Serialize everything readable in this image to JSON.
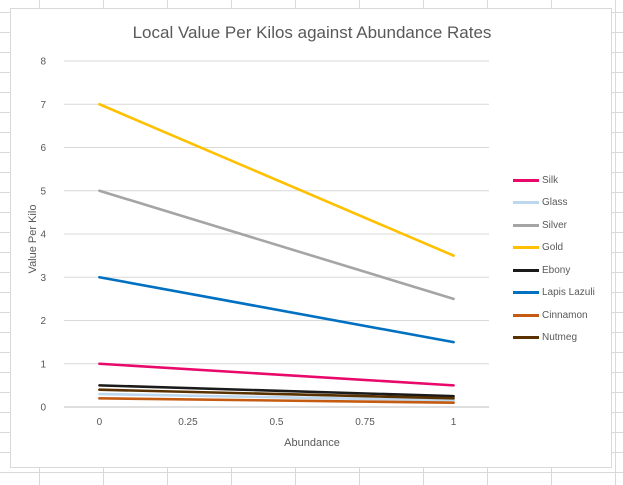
{
  "chart_data": {
    "type": "line",
    "title": "Local Value Per Kilos against Abundance Rates",
    "xlabel": "Abundance",
    "ylabel": "Value Per Kilo",
    "xlim": [
      -0.1,
      1.1
    ],
    "ylim": [
      0,
      8
    ],
    "x_ticks": [
      0,
      0.25,
      0.5,
      0.75,
      1
    ],
    "x_tick_labels": [
      "0",
      "0.25",
      "0.5",
      "0.75",
      "1"
    ],
    "y_ticks": [
      0,
      1,
      2,
      3,
      4,
      5,
      6,
      7,
      8
    ],
    "y_tick_labels": [
      "0",
      "1",
      "2",
      "3",
      "4",
      "5",
      "6",
      "7",
      "8"
    ],
    "grid": true,
    "legend_position": "right",
    "x": [
      0,
      1
    ],
    "series": [
      {
        "name": "Silk",
        "color": "#e8096b",
        "values": [
          1,
          0.5
        ]
      },
      {
        "name": "Glass",
        "color": "#bdd7ee",
        "values": [
          0.3,
          0.15
        ]
      },
      {
        "name": "Silver",
        "color": "#a5a5a5",
        "values": [
          5,
          2.5
        ]
      },
      {
        "name": "Gold",
        "color": "#ffc000",
        "values": [
          7,
          3.5
        ]
      },
      {
        "name": "Ebony",
        "color": "#1a1a1a",
        "values": [
          0.5,
          0.25
        ]
      },
      {
        "name": "Lapis Lazuli",
        "color": "#0070c0",
        "values": [
          3,
          1.5
        ]
      },
      {
        "name": "Cinnamon",
        "color": "#c55a11",
        "values": [
          0.2,
          0.1
        ]
      },
      {
        "name": "Nutmeg",
        "color": "#5a3200",
        "values": [
          0.4,
          0.2
        ]
      }
    ]
  }
}
